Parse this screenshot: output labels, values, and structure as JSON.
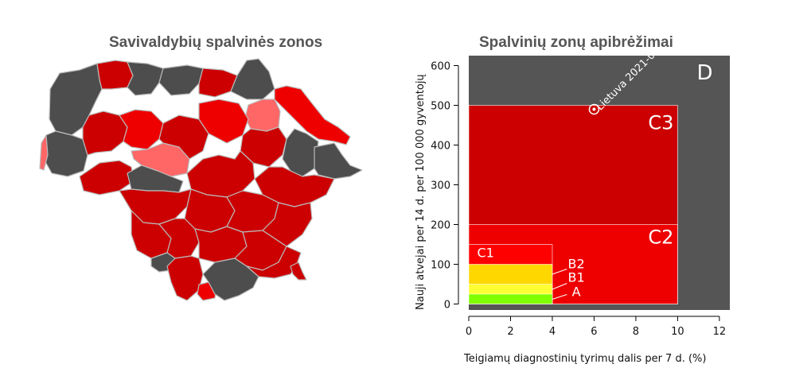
{
  "map": {
    "title": "Savivaldybių spalvinės zonos",
    "colors": {
      "dark": "#4d4d4d",
      "red": "#cc0000",
      "bright_red": "#ee0000",
      "pink": "#ff6666"
    }
  },
  "chart_data": {
    "type": "zones",
    "title": "Spalvinių zonų apibrėžimai",
    "xlabel": "Teigiamų diagnostinių tyrimų dalis per 7 d. (%)",
    "ylabel": "Nauji atvejai per 14 d. per 100 000 gyventojų",
    "xlim": [
      0,
      12.5
    ],
    "ylim": [
      -15,
      625
    ],
    "x_ticks": [
      0,
      2,
      4,
      6,
      8,
      10,
      12
    ],
    "y_ticks": [
      0,
      100,
      200,
      300,
      400,
      500,
      600
    ],
    "zones": [
      {
        "label": "D",
        "x": [
          0,
          12.5
        ],
        "y": [
          0,
          625
        ],
        "color": "#555555"
      },
      {
        "label": "C3",
        "x": [
          0,
          10
        ],
        "y": [
          0,
          500
        ],
        "color": "#cc0000"
      },
      {
        "label": "C2",
        "x": [
          0,
          10
        ],
        "y": [
          0,
          200
        ],
        "color": "#ee0000"
      },
      {
        "label": "C1",
        "x": [
          0,
          4
        ],
        "y": [
          0,
          150
        ],
        "color": "#ff0000"
      },
      {
        "label": "B2",
        "x": [
          0,
          4
        ],
        "y": [
          0,
          100
        ],
        "color": "#ffd700"
      },
      {
        "label": "B1",
        "x": [
          0,
          4
        ],
        "y": [
          0,
          50
        ],
        "color": "#ffff33"
      },
      {
        "label": "A",
        "x": [
          0,
          4
        ],
        "y": [
          0,
          25
        ],
        "color": "#7fff00"
      }
    ],
    "point": {
      "label": "Lietuva 2021-0",
      "x": 6.0,
      "y": 490
    }
  }
}
